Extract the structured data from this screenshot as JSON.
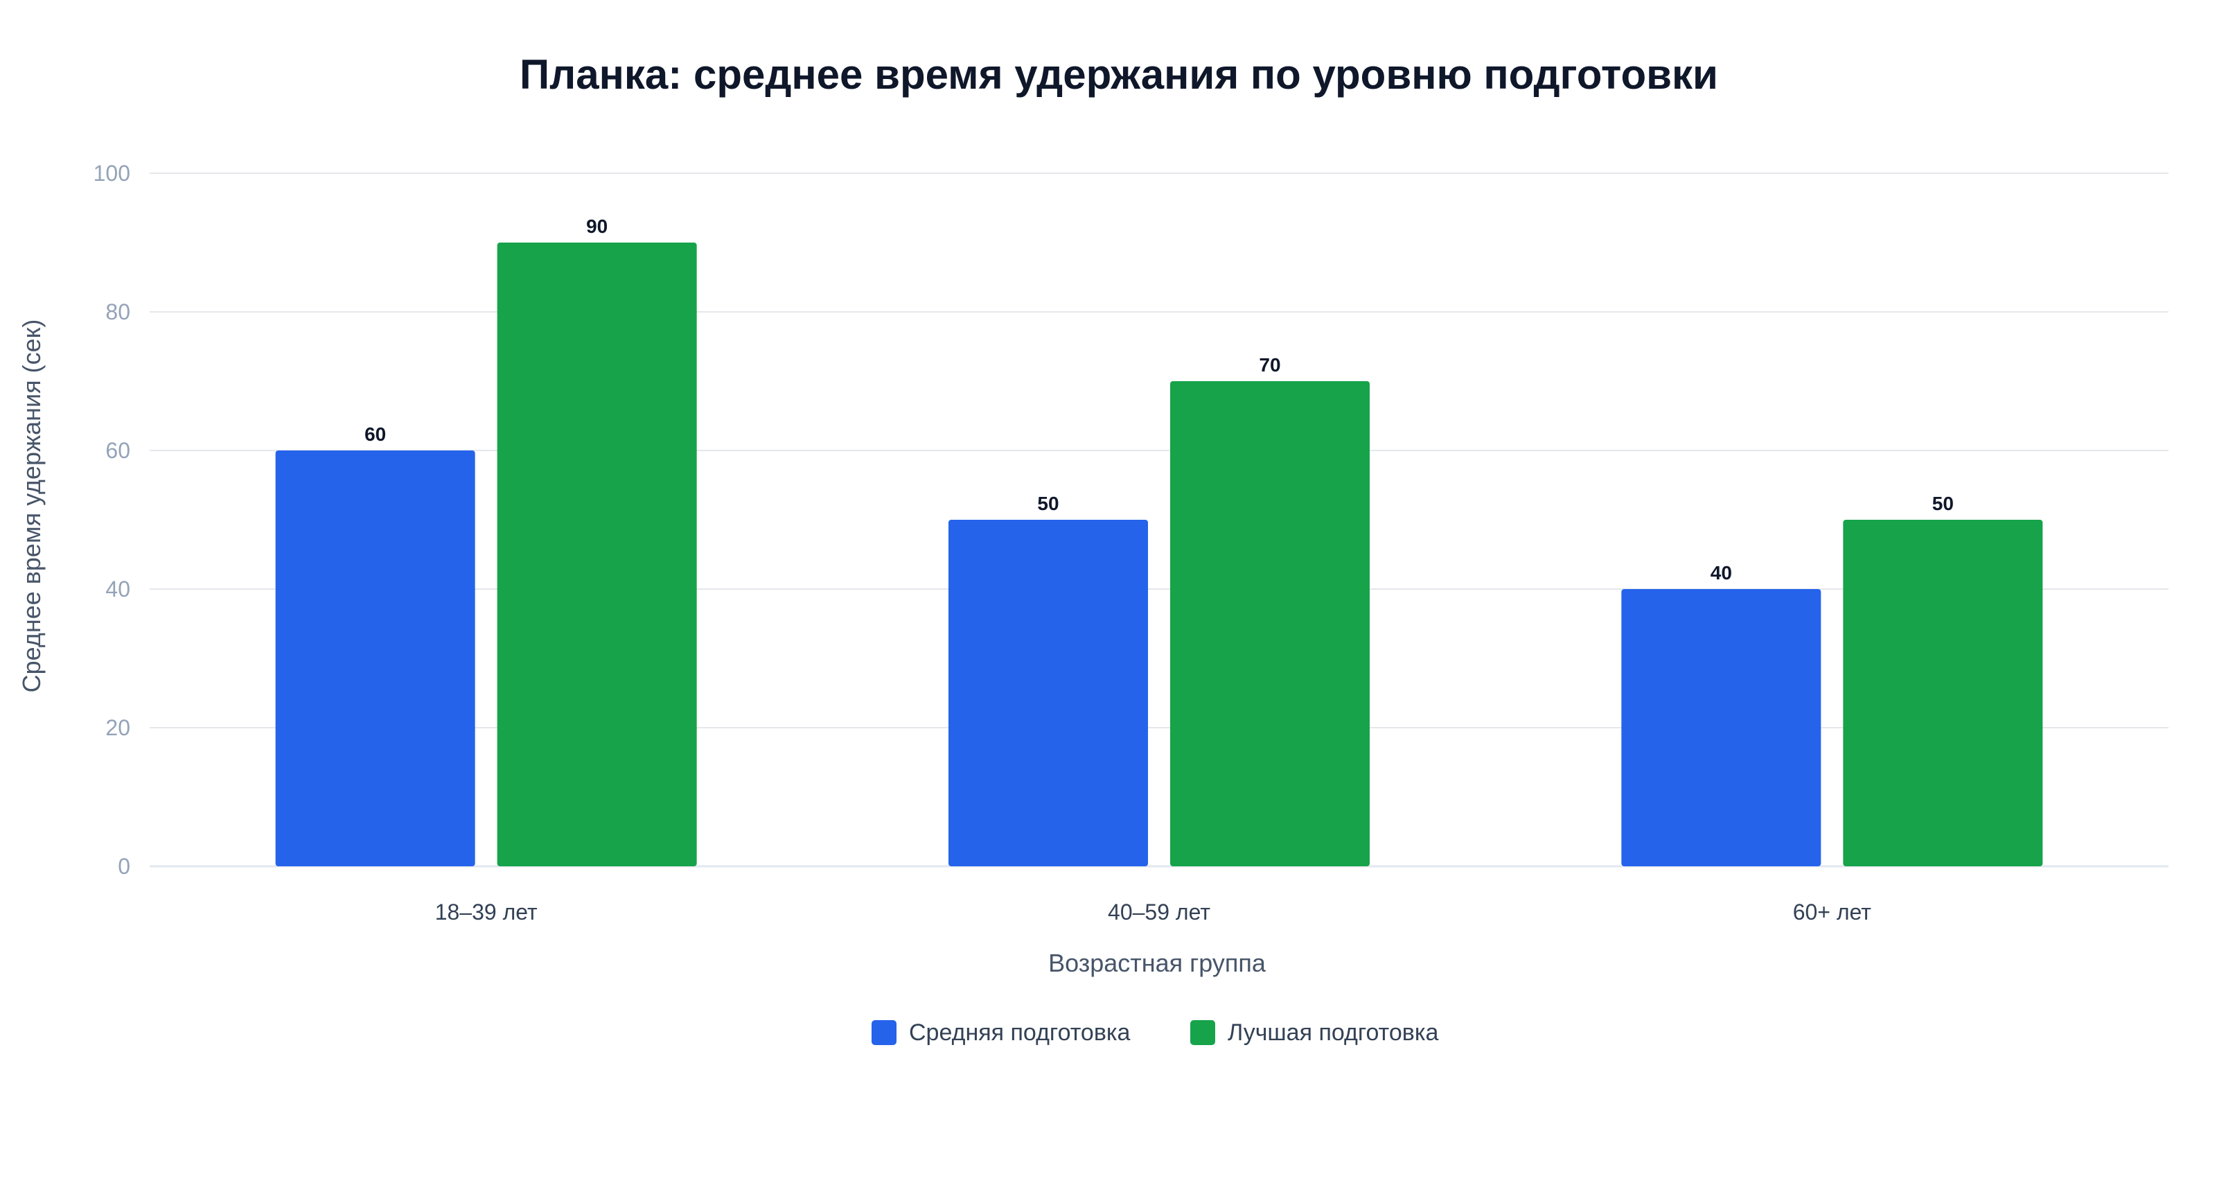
{
  "chart_data": {
    "type": "bar",
    "title": "Планка: среднее время удержания по уровню подготовки",
    "xlabel": "Возрастная группа",
    "ylabel": "Среднее время удержания (сек)",
    "categories": [
      "18–39 лет",
      "40–59 лет",
      "60+ лет"
    ],
    "series": [
      {
        "name": "Средняя подготовка",
        "values": [
          60,
          50,
          40
        ],
        "color": "#2563eb"
      },
      {
        "name": "Лучшая подготовка",
        "values": [
          90,
          70,
          50
        ],
        "color": "#16a34a"
      }
    ],
    "ylim": [
      0,
      100
    ],
    "yticks": [
      0,
      20,
      40,
      60,
      80,
      100
    ],
    "grid": true,
    "legend_position": "bottom-center",
    "show_value_labels": true
  }
}
